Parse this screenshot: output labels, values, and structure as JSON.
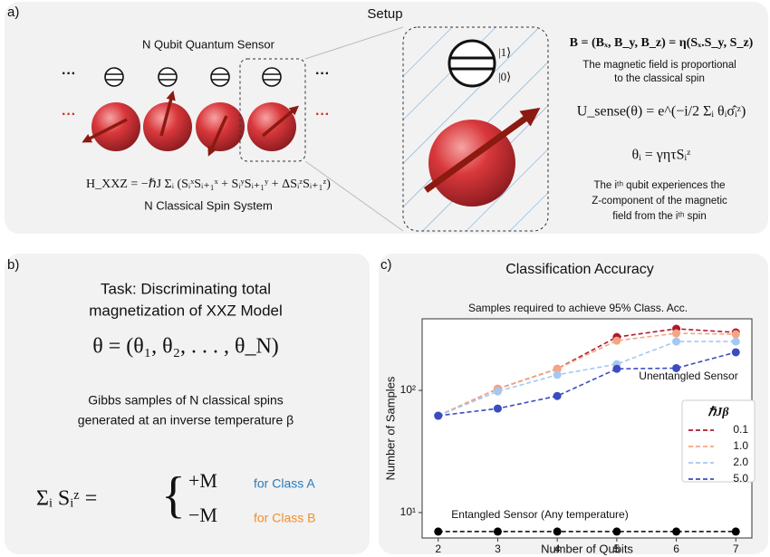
{
  "panel_a": {
    "label": "a)",
    "title": "Setup",
    "sensor_label": "N Qubit Quantum Sensor",
    "spin_label": "N Classical Spin System",
    "hamiltonian": "H_XXZ = −ℏJ Σᵢ (SᵢˣSᵢ₊₁ˣ + SᵢʸSᵢ₊₁ʸ + ΔSᵢᶻSᵢ₊₁ᶻ)",
    "ket1": "|1⟩",
    "ket0": "|0⟩",
    "field_eq": "B = (Bₓ, B_y, B_z) = η(Sₓ.S_y, S_z)",
    "field_desc": [
      "The magnetic field is proportional",
      "to the classical spin"
    ],
    "unitary": "U_sense(θ) = e^(−i/2 Σᵢ θᵢσ̂ᵢᶻ)",
    "theta_eq": "θᵢ = γητSᵢᶻ",
    "qubit_desc": [
      "The iᵗʰ qubit experiences the",
      "Z-component of the magnetic",
      "field from the iᵗʰ spin"
    ]
  },
  "panel_b": {
    "label": "b)",
    "task": [
      "Task: Discriminating total",
      "magnetization of XXZ Model"
    ],
    "theta_vector": "θ = (θ₁, θ₂, . . . , θ_N)",
    "gibbs": [
      "Gibbs samples of N classical spins",
      "generated at an inverse temperature β"
    ],
    "sum_lhs": "Σᵢ Sᵢᶻ =",
    "cases": [
      {
        "value": "+M",
        "class": "for Class A"
      },
      {
        "value": "−M",
        "class": "for Class B"
      }
    ]
  },
  "panel_c": {
    "label": "c)"
  },
  "chart_data": {
    "type": "line",
    "title": "Classification Accuracy",
    "subtitle": "Samples required to achieve 95% Class. Acc.",
    "x_label": "Number of Qubits",
    "y_label": "Number of Samples",
    "x": [
      2,
      3,
      4,
      5,
      6,
      7
    ],
    "xlim": [
      1.73,
      7.27
    ],
    "xticks": [
      2,
      3,
      4,
      5,
      6,
      7
    ],
    "ylim": [
      6.2,
      385
    ],
    "y_scale": "log",
    "yticks": [
      {
        "value": 10,
        "label": "10¹"
      },
      {
        "value": 100,
        "label": "10²"
      }
    ],
    "legend_title": "ℏJβ",
    "legend_position": "right",
    "series": [
      {
        "name": "0.1",
        "color": "#b2182b",
        "linestyle": "dashed",
        "values": [
          62,
          103,
          150,
          273,
          319,
          298
        ]
      },
      {
        "name": "1.0",
        "color": "#f4a582",
        "linestyle": "dashed",
        "values": [
          62,
          103,
          150,
          255,
          293,
          288
        ]
      },
      {
        "name": "2.0",
        "color": "#a6c8ef",
        "linestyle": "dashed",
        "values": [
          62,
          98,
          134,
          164,
          251,
          251
        ]
      },
      {
        "name": "5.0",
        "color": "#3b4cc0",
        "linestyle": "dashed",
        "values": [
          62,
          71,
          90,
          150,
          152,
          205
        ]
      },
      {
        "name": "Entangled Sensor (Any temperature)",
        "color": "#000000",
        "linestyle": "dashed",
        "legend": false,
        "values": [
          7,
          7,
          7,
          7,
          7,
          7
        ]
      }
    ],
    "annotations": [
      "Unentangled Sensor"
    ]
  }
}
